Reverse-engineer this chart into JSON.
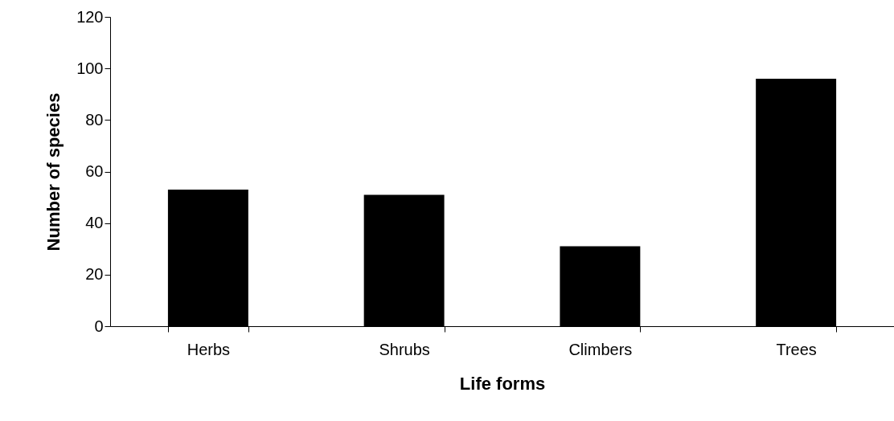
{
  "chart_data": {
    "type": "bar",
    "xlabel": "Life forms",
    "ylabel": "Number of species",
    "categories": [
      "Herbs",
      "Shrubs",
      "Climbers",
      "Trees"
    ],
    "values": [
      53,
      51,
      31,
      96
    ],
    "color": "#000000",
    "ylim": [
      0,
      120
    ],
    "yticks": [
      0,
      20,
      40,
      60,
      80,
      100,
      120
    ],
    "grid": false
  }
}
